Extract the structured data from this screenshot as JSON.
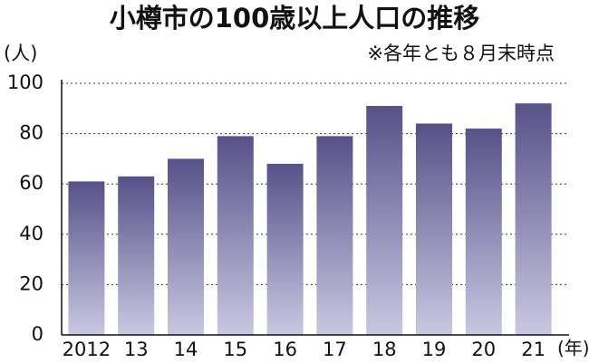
{
  "chart_data": {
    "type": "bar",
    "title": "小樽市の100歳以上人口の推移",
    "subtitle": "※各年とも８月末時点",
    "y_label": "(人)",
    "x_label": "(年)",
    "categories": [
      "2012",
      "13",
      "14",
      "15",
      "16",
      "17",
      "18",
      "19",
      "20",
      "21"
    ],
    "values": [
      61,
      63,
      70,
      79,
      68,
      79,
      91,
      84,
      82,
      92
    ],
    "color": "#575189",
    "ylim": [
      0,
      100
    ],
    "yticks": [
      0,
      20,
      40,
      60,
      80,
      100
    ],
    "grid": true
  }
}
